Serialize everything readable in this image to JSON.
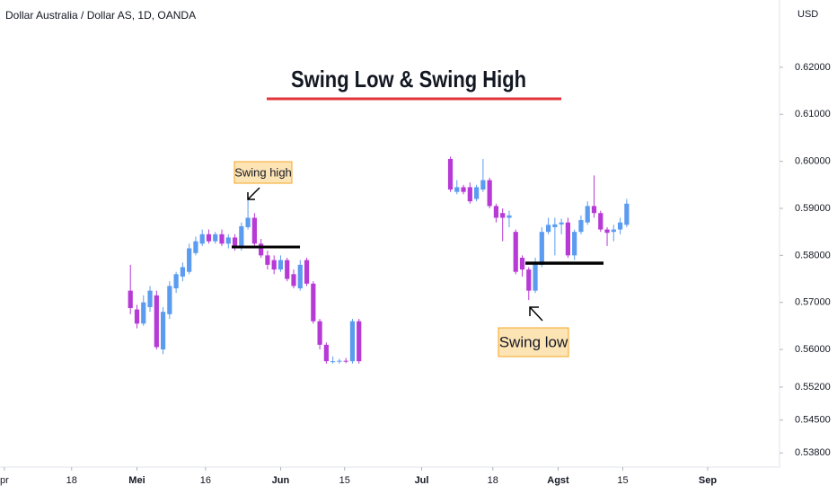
{
  "chart_data": {
    "type": "candlestick",
    "symbol": "Dollar Australia / Dollar AS, 1D, OANDA",
    "title": "Swing Low & Swing High",
    "currency": "USD",
    "annotations": [
      "Swing high",
      "Swing low"
    ],
    "up_color": "#5b9cf0",
    "down_color": "#b73ad6",
    "x": [
      -1,
      0,
      1,
      2,
      3,
      4,
      5,
      6,
      7,
      8,
      9,
      10,
      11,
      12,
      13,
      14,
      15,
      16,
      17,
      18,
      19,
      20,
      21,
      22,
      23,
      24,
      25,
      26,
      27,
      28,
      29,
      30,
      31,
      32,
      33,
      34,
      48,
      49,
      50,
      51,
      52,
      53,
      54,
      55,
      56,
      57,
      58,
      59,
      60,
      61,
      62,
      63,
      64,
      65,
      66,
      67,
      68,
      69,
      70,
      71,
      72,
      73,
      74,
      75
    ],
    "open": [
      0.5725,
      0.5685,
      0.5655,
      0.569,
      0.5715,
      0.56,
      0.5675,
      0.573,
      0.5755,
      0.5765,
      0.5805,
      0.5825,
      0.5845,
      0.583,
      0.5845,
      0.5825,
      0.5838,
      0.5815,
      0.586,
      0.588,
      0.5825,
      0.58,
      0.579,
      0.577,
      0.579,
      0.576,
      0.573,
      0.579,
      0.574,
      0.566,
      0.561,
      0.5575,
      0.5575,
      0.5576,
      0.5575,
      0.566,
      0.6005,
      0.5935,
      0.5945,
      0.5945,
      0.592,
      0.594,
      0.596,
      0.5905,
      0.589,
      0.588,
      0.585,
      0.5795,
      0.577,
      0.5725,
      0.578,
      0.585,
      0.586,
      0.5866,
      0.587,
      0.58,
      0.585,
      0.587,
      0.5905,
      0.589,
      0.5855,
      0.585,
      0.5855,
      0.5865
    ],
    "high": [
      0.578,
      0.5695,
      0.5715,
      0.5735,
      0.5725,
      0.569,
      0.5745,
      0.5765,
      0.5785,
      0.5825,
      0.584,
      0.5855,
      0.5855,
      0.585,
      0.5855,
      0.5845,
      0.5845,
      0.587,
      0.592,
      0.589,
      0.5835,
      0.581,
      0.58,
      0.58,
      0.5795,
      0.577,
      0.579,
      0.5795,
      0.5745,
      0.5665,
      0.5615,
      0.5585,
      0.558,
      0.5582,
      0.5665,
      0.5665,
      0.601,
      0.596,
      0.595,
      0.5955,
      0.595,
      0.6005,
      0.5965,
      0.591,
      0.59,
      0.5895,
      0.5855,
      0.58,
      0.5775,
      0.5795,
      0.586,
      0.588,
      0.588,
      0.5878,
      0.588,
      0.5855,
      0.5885,
      0.5915,
      0.597,
      0.5895,
      0.586,
      0.5865,
      0.588,
      0.592
    ],
    "low": [
      0.5675,
      0.5645,
      0.565,
      0.568,
      0.56,
      0.559,
      0.5665,
      0.572,
      0.5745,
      0.576,
      0.58,
      0.582,
      0.5825,
      0.5825,
      0.582,
      0.5815,
      0.581,
      0.581,
      0.5855,
      0.582,
      0.5795,
      0.577,
      0.576,
      0.5765,
      0.5745,
      0.573,
      0.5725,
      0.5735,
      0.5655,
      0.56,
      0.557,
      0.557,
      0.557,
      0.5571,
      0.557,
      0.557,
      0.5935,
      0.593,
      0.593,
      0.591,
      0.5915,
      0.5935,
      0.59,
      0.587,
      0.583,
      0.586,
      0.576,
      0.5755,
      0.5705,
      0.572,
      0.5775,
      0.5845,
      0.58,
      0.5845,
      0.5795,
      0.579,
      0.5845,
      0.5865,
      0.588,
      0.585,
      0.582,
      0.583,
      0.5845,
      0.586
    ],
    "close": [
      0.5688,
      0.5655,
      0.57,
      0.5725,
      0.5605,
      0.568,
      0.5735,
      0.576,
      0.5775,
      0.5815,
      0.583,
      0.5845,
      0.583,
      0.5845,
      0.5825,
      0.5838,
      0.5815,
      0.5862,
      0.588,
      0.5825,
      0.58,
      0.578,
      0.577,
      0.579,
      0.575,
      0.5735,
      0.578,
      0.574,
      0.566,
      0.561,
      0.5575,
      0.5575,
      0.5576,
      0.5575,
      0.566,
      0.5575,
      0.594,
      0.5945,
      0.5935,
      0.5915,
      0.5945,
      0.596,
      0.5905,
      0.588,
      0.588,
      0.5885,
      0.5765,
      0.577,
      0.5725,
      0.5785,
      0.585,
      0.5865,
      0.5866,
      0.587,
      0.58,
      0.585,
      0.5875,
      0.5905,
      0.589,
      0.5855,
      0.5848,
      0.5855,
      0.587,
      0.591
    ],
    "xlim": [
      -20.97,
      98.4
    ],
    "xticks": [
      {
        "value": -20.3,
        "label": "pr"
      },
      {
        "value": -10,
        "label": "18"
      },
      {
        "value": 0,
        "label": "Mei"
      },
      {
        "value": 10.5,
        "label": "16"
      },
      {
        "value": 22,
        "label": "Jun"
      },
      {
        "value": 31.8,
        "label": "15"
      },
      {
        "value": 43.6,
        "label": "Jul"
      },
      {
        "value": 54.5,
        "label": "18"
      },
      {
        "value": 64.5,
        "label": "Agst"
      },
      {
        "value": 74.4,
        "label": "15"
      },
      {
        "value": 87.4,
        "label": "Sep"
      }
    ],
    "ylim": [
      0.535,
      0.6343
    ],
    "yticks": [
      {
        "value": 0.62,
        "label": "0.62000"
      },
      {
        "value": 0.61,
        "label": "0.61000"
      },
      {
        "value": 0.6,
        "label": "0.60000"
      },
      {
        "value": 0.59,
        "label": "0.59000"
      },
      {
        "value": 0.58,
        "label": "0.58000"
      },
      {
        "value": 0.57,
        "label": "0.57000"
      },
      {
        "value": 0.56,
        "label": "0.56000"
      },
      {
        "value": 0.552,
        "label": "0.55200"
      },
      {
        "value": 0.545,
        "label": "0.54500"
      },
      {
        "value": 0.538,
        "label": "0.53800"
      }
    ]
  }
}
